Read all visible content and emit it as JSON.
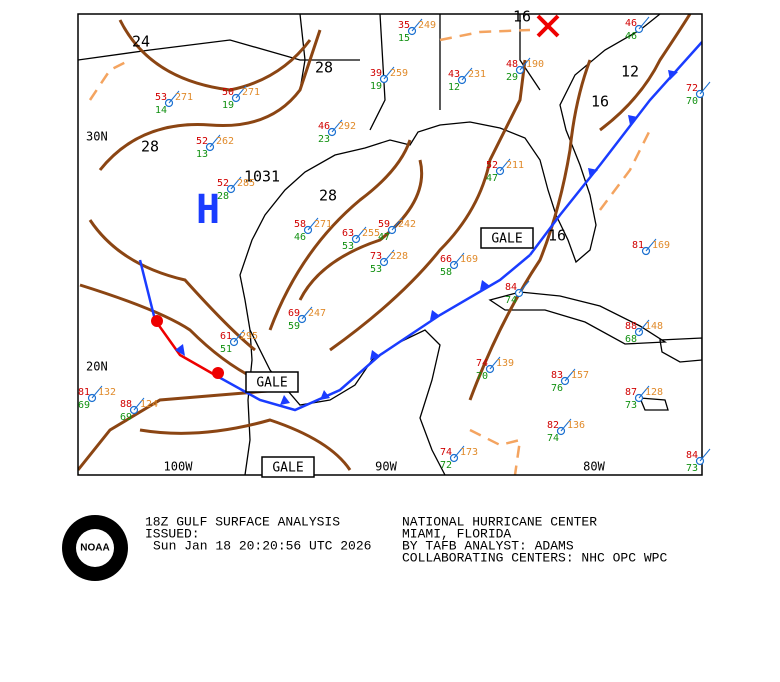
{
  "map": {
    "lat_labels": [
      "30N",
      "20N"
    ],
    "lon_labels": [
      "100W",
      "90W",
      "80W"
    ],
    "isobar_labels": [
      24,
      28,
      28,
      28,
      1031,
      16,
      12,
      16,
      16
    ],
    "high_symbol": "H",
    "gale_labels": [
      "GALE",
      "GALE",
      "GALE"
    ],
    "stations": [
      {
        "t": 35,
        "d": 15,
        "p": 249
      },
      {
        "t": 53,
        "d": 14,
        "p": 271
      },
      {
        "t": 50,
        "d": 19,
        "p": 271
      },
      {
        "t": 52,
        "d": 13,
        "p": 262
      },
      {
        "t": 39,
        "d": 19,
        "p": 259
      },
      {
        "t": 43,
        "d": 12,
        "p": 231
      },
      {
        "t": 46,
        "d": 23,
        "p": 292
      },
      {
        "t": 52,
        "d": 28,
        "p": 285
      },
      {
        "t": 58,
        "d": 46,
        "p": 271
      },
      {
        "t": 63,
        "d": 53,
        "p": 255
      },
      {
        "t": 59,
        "d": 47,
        "p": 242
      },
      {
        "t": 73,
        "d": 53,
        "p": 228
      },
      {
        "t": 66,
        "d": 58,
        "p": 169
      },
      {
        "t": 69,
        "d": 59,
        "p": 247
      },
      {
        "t": 61,
        "d": 51,
        "p": 295
      },
      {
        "t": 81,
        "d": 69,
        "p": 132
      },
      {
        "t": 88,
        "d": 69,
        "p": 124
      },
      {
        "t": 74,
        "d": 70,
        "p": 139
      },
      {
        "t": 83,
        "d": 76,
        "p": 157
      },
      {
        "t": 82,
        "d": 74,
        "p": 136
      },
      {
        "t": 87,
        "d": 73,
        "p": 128
      },
      {
        "t": 81,
        "p": 169
      },
      {
        "t": 88,
        "d": 68,
        "p": 148
      },
      {
        "t": 72,
        "d": 70
      },
      {
        "t": 52,
        "d": 47,
        "p": 211
      },
      {
        "t": 84,
        "d": 74
      },
      {
        "t": 74,
        "d": 72,
        "p": 173
      },
      {
        "t": 84,
        "d": 73
      },
      {
        "t": 46,
        "d": 46
      },
      {
        "t": 48,
        "d": 29,
        "p": 190
      }
    ]
  },
  "footer": {
    "noaa_logo": "NOAA",
    "product": "18Z GULF SURFACE ANALYSIS",
    "issued_label": "ISSUED:",
    "issued_time": "Sun Jan 18 20:20:56 UTC 2026",
    "center": "NATIONAL HURRICANE CENTER",
    "location": "MIAMI, FLORIDA",
    "analyst": "BY TAFB ANALYST: ADAMS",
    "collaborating": "COLLABORATING CENTERS: NHC OPC WPC"
  }
}
